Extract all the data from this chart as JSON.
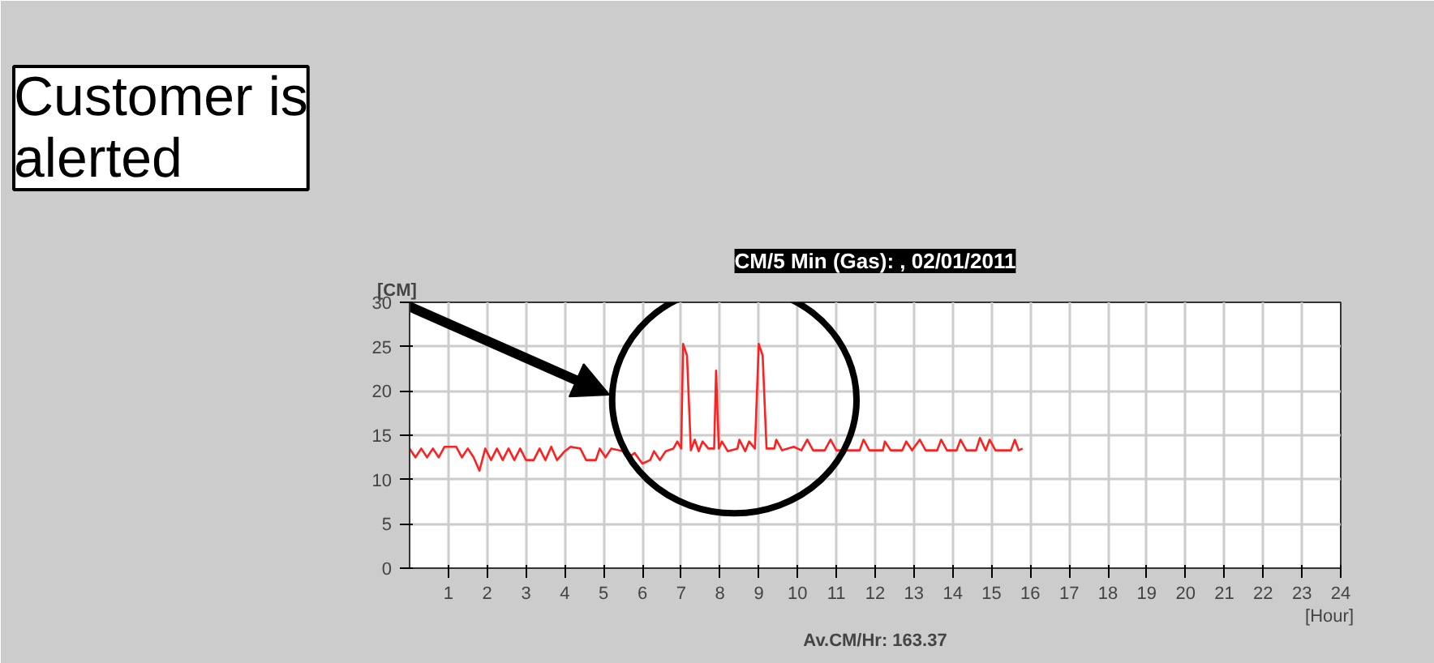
{
  "chart_data": {
    "type": "line",
    "title": "CM/5 Min (Gas): , 02/01/2011",
    "xlabel": "[Hour]",
    "ylabel": "[CM]",
    "annotations": [
      "Customer is\nalerted",
      "Av.CM/Hr: 163.37"
    ],
    "xlim": [
      0,
      24
    ],
    "xticks": [
      1,
      2,
      3,
      4,
      5,
      6,
      7,
      8,
      9,
      10,
      11,
      12,
      13,
      14,
      15,
      16,
      17,
      18,
      19,
      20,
      21,
      22,
      23,
      24
    ],
    "ylim": [
      0,
      30
    ],
    "yticks": [
      0,
      5,
      10,
      15,
      20,
      25,
      30
    ],
    "grid": true,
    "marker": "none",
    "line_style": "solid",
    "series": [
      {
        "color": "#ff2020",
        "x": [
          0,
          0.15,
          0.3,
          0.45,
          0.6,
          0.75,
          0.9,
          1.2,
          1.35,
          1.5,
          1.65,
          1.8,
          1.95,
          2.1,
          2.25,
          2.4,
          2.55,
          2.7,
          2.85,
          3.0,
          3.2,
          3.35,
          3.5,
          3.65,
          3.8,
          4.0,
          4.15,
          4.4,
          4.55,
          4.8,
          4.9,
          5.05,
          5.2,
          5.5,
          5.65,
          5.8,
          6.0,
          6.2,
          6.3,
          6.45,
          6.6,
          6.8,
          6.9,
          7.0,
          7.05,
          7.15,
          7.25,
          7.35,
          7.45,
          7.55,
          7.7,
          7.85,
          7.9,
          7.97,
          8.05,
          8.2,
          8.45,
          8.5,
          8.65,
          8.75,
          8.9,
          9.0,
          9.1,
          9.2,
          9.4,
          9.45,
          9.6,
          9.9,
          10.1,
          10.25,
          10.4,
          10.7,
          10.85,
          11.0,
          11.3,
          11.6,
          11.7,
          11.85,
          12.2,
          12.25,
          12.4,
          12.7,
          12.8,
          12.95,
          13.15,
          13.3,
          13.6,
          13.7,
          13.85,
          14.1,
          14.2,
          14.35,
          14.6,
          14.7,
          14.85,
          14.95,
          15.1,
          15.5,
          15.6,
          15.7,
          15.8
        ],
        "values": [
          13.5,
          12.5,
          13.5,
          12.5,
          13.5,
          12.5,
          13.7,
          13.7,
          12.5,
          13.5,
          12.5,
          11.0,
          13.5,
          12.2,
          13.5,
          12.2,
          13.5,
          12.2,
          13.5,
          12.2,
          12.2,
          13.5,
          12.2,
          13.7,
          12.2,
          13.2,
          13.7,
          13.5,
          12.2,
          12.2,
          13.5,
          12.5,
          13.5,
          13.2,
          12.5,
          13.0,
          11.8,
          12.2,
          13.2,
          12.2,
          13.2,
          13.5,
          14.3,
          13.5,
          25.3,
          24.0,
          13.3,
          14.5,
          13.2,
          14.3,
          13.5,
          13.5,
          22.3,
          13.5,
          14.3,
          13.2,
          13.5,
          14.5,
          13.2,
          14.3,
          13.5,
          25.3,
          24.0,
          13.5,
          13.5,
          14.5,
          13.3,
          13.7,
          13.3,
          14.5,
          13.3,
          13.3,
          14.5,
          13.3,
          13.3,
          13.3,
          14.5,
          13.3,
          13.3,
          14.3,
          13.3,
          13.3,
          14.3,
          13.3,
          14.5,
          13.3,
          13.3,
          14.5,
          13.3,
          13.3,
          14.5,
          13.3,
          13.3,
          14.7,
          13.3,
          14.5,
          13.3,
          13.3,
          14.5,
          13.3,
          13.5
        ]
      }
    ]
  }
}
